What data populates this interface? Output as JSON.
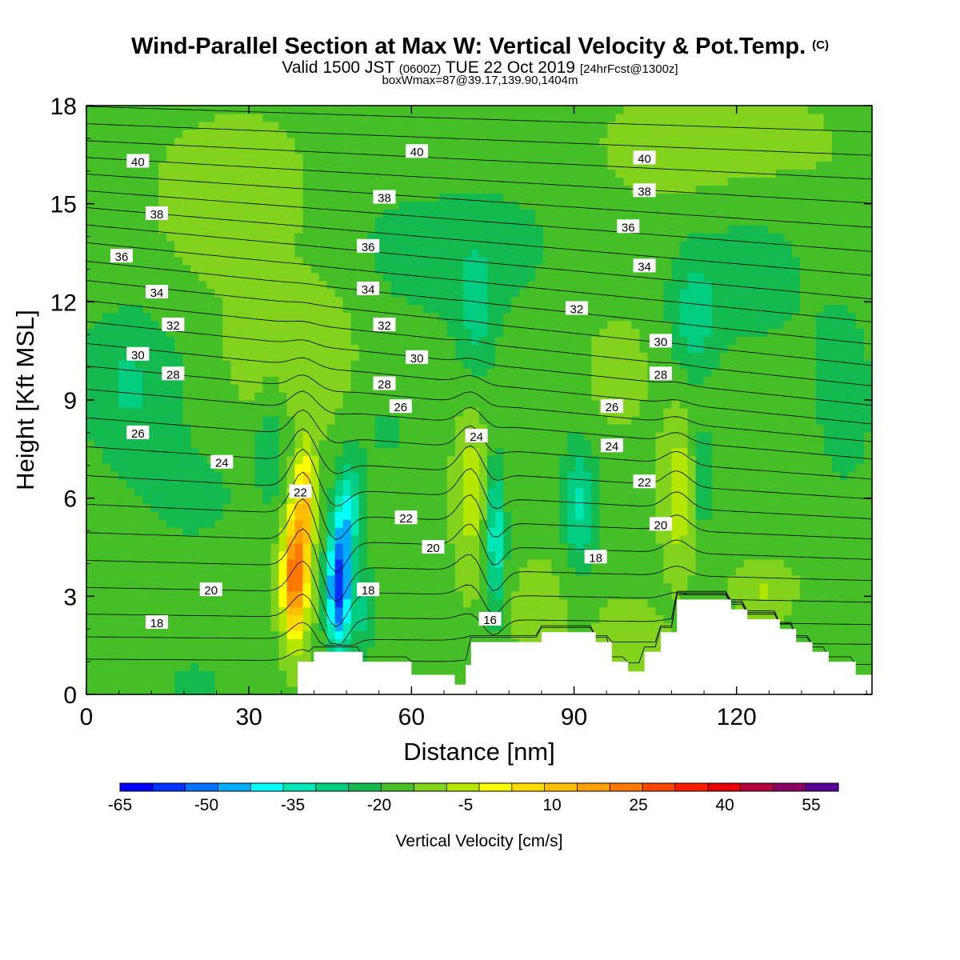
{
  "chart_data": {
    "type": "heatmap",
    "title": "Wind-Parallel Section at Max W: Vertical Velocity & Pot.Temp.",
    "copyright_mark": "(C)",
    "subtitle": {
      "valid_label": "Valid 1500 JST",
      "utc_time": "(0600Z)",
      "date_text": "TUE 22 Oct 2019",
      "forecast_info": "[24hrFcst@1300z]"
    },
    "box_info": "boxWmax=87@39.17,139.90,1404m",
    "xlabel": "Distance [nm]",
    "ylabel": "Height [Kft MSL]",
    "xlim": [
      0,
      145
    ],
    "ylim": [
      0,
      18
    ],
    "x_ticks": [
      0,
      30,
      60,
      90,
      120
    ],
    "y_ticks": [
      0,
      3,
      6,
      9,
      12,
      15,
      18
    ],
    "colorbar": {
      "label": "Vertical Velocity [cm/s]",
      "tick_labels": [
        "-65",
        "-50",
        "-35",
        "-20",
        "-5",
        "10",
        "25",
        "40",
        "55"
      ],
      "colors": [
        "#0000ff",
        "#0032ff",
        "#0072ff",
        "#00aaff",
        "#00ffff",
        "#00e6b4",
        "#00cd82",
        "#14b950",
        "#46be28",
        "#82d21e",
        "#b4e600",
        "#ffff00",
        "#ffdc00",
        "#ffbe00",
        "#ffa000",
        "#ff7800",
        "#ff4600",
        "#ff1e00",
        "#e60000",
        "#b4003c",
        "#8c0064",
        "#5a0096"
      ]
    },
    "terrain": [
      [
        0,
        0
      ],
      [
        39,
        0
      ],
      [
        39,
        1
      ],
      [
        42,
        1
      ],
      [
        42,
        1.3
      ],
      [
        51,
        1.3
      ],
      [
        51,
        1
      ],
      [
        60,
        1
      ],
      [
        60,
        0.6
      ],
      [
        68,
        0.6
      ],
      [
        68,
        0.3
      ],
      [
        70,
        0.3
      ],
      [
        70,
        0.9
      ],
      [
        71,
        0.9
      ],
      [
        71,
        1.6
      ],
      [
        84,
        1.6
      ],
      [
        84,
        1.9
      ],
      [
        94,
        1.9
      ],
      [
        94,
        1.6
      ],
      [
        97,
        1.6
      ],
      [
        97,
        1
      ],
      [
        100,
        1
      ],
      [
        100,
        0.7
      ],
      [
        103,
        0.7
      ],
      [
        103,
        1.3
      ],
      [
        106,
        1.3
      ],
      [
        106,
        1.9
      ],
      [
        109,
        1.9
      ],
      [
        109,
        2.9
      ],
      [
        119,
        2.9
      ],
      [
        119,
        2.6
      ],
      [
        122,
        2.6
      ],
      [
        122,
        2.3
      ],
      [
        128,
        2.3
      ],
      [
        128,
        2
      ],
      [
        131,
        2
      ],
      [
        131,
        1.6
      ],
      [
        134,
        1.6
      ],
      [
        134,
        1.3
      ],
      [
        137,
        1.3
      ],
      [
        137,
        1
      ],
      [
        142,
        1
      ],
      [
        142,
        0.6
      ],
      [
        145,
        0.6
      ],
      [
        145,
        0
      ]
    ],
    "vertical_velocity_cores": [
      {
        "x": 38.5,
        "z": 3.6,
        "value": 55,
        "sx": 2.3,
        "sz": 1.9
      },
      {
        "x": 40.5,
        "z": 6.0,
        "value": 32,
        "sx": 2.0,
        "sz": 1.6
      },
      {
        "x": 46.5,
        "z": 3.3,
        "value": -55,
        "sx": 2.1,
        "sz": 2.0
      },
      {
        "x": 48.5,
        "z": 5.6,
        "value": -25,
        "sx": 2.2,
        "sz": 1.6
      },
      {
        "x": 51,
        "z": 2.6,
        "value": -15,
        "sx": 2.5,
        "sz": 1.5
      },
      {
        "x": 71,
        "z": 6.2,
        "value": 14,
        "sx": 3.0,
        "sz": 2.5
      },
      {
        "x": 75.5,
        "z": 4.8,
        "value": -28,
        "sx": 1.8,
        "sz": 2.4
      },
      {
        "x": 91,
        "z": 5.8,
        "value": -22,
        "sx": 3.2,
        "sz": 2.0
      },
      {
        "x": 109.5,
        "z": 6.2,
        "value": 16,
        "sx": 3.0,
        "sz": 2.2
      },
      {
        "x": 113.5,
        "z": 6.5,
        "value": -14,
        "sx": 2.0,
        "sz": 1.8
      },
      {
        "x": 43,
        "z": 10.5,
        "value": 10,
        "sx": 7.0,
        "sz": 2.2
      },
      {
        "x": 30,
        "z": 11.0,
        "value": 8,
        "sx": 4.0,
        "sz": 1.8
      },
      {
        "x": 34,
        "z": 7.5,
        "value": -12,
        "sx": 2.5,
        "sz": 1.5
      },
      {
        "x": 8,
        "z": 9.5,
        "value": -14,
        "sx": 10.0,
        "sz": 2.5
      },
      {
        "x": 28,
        "z": 15.0,
        "value": 7,
        "sx": 14.0,
        "sz": 2.5
      },
      {
        "x": 68,
        "z": 14.0,
        "value": -10,
        "sx": 22.0,
        "sz": 3.0
      },
      {
        "x": 72,
        "z": 11.5,
        "value": -12,
        "sx": 3.5,
        "sz": 2.0
      },
      {
        "x": 112,
        "z": 11.5,
        "value": -14,
        "sx": 4.0,
        "sz": 1.8
      },
      {
        "x": 122,
        "z": 13.0,
        "value": -9,
        "sx": 14.0,
        "sz": 3.0
      },
      {
        "x": 116,
        "z": 16.5,
        "value": 7,
        "sx": 22.0,
        "sz": 2.0
      },
      {
        "x": 65,
        "z": 16.5,
        "value": 6,
        "sx": 15.0,
        "sz": 1.5
      },
      {
        "x": 98,
        "z": 10.0,
        "value": 6,
        "sx": 6.0,
        "sz": 1.8
      },
      {
        "x": 20,
        "z": 0.4,
        "value": -8,
        "sx": 6.0,
        "sz": 0.8
      },
      {
        "x": 140,
        "z": 9.0,
        "value": -10,
        "sx": 6.0,
        "sz": 3.0
      },
      {
        "x": 20,
        "z": 6.0,
        "value": -7,
        "sx": 12.0,
        "sz": 2.0
      },
      {
        "x": 55,
        "z": 8.0,
        "value": -6,
        "sx": 8.0,
        "sz": 2.0
      },
      {
        "x": 100,
        "z": 1.7,
        "value": 9,
        "sx": 6.0,
        "sz": 1.0
      },
      {
        "x": 125,
        "z": 3.2,
        "value": 10,
        "sx": 5.0,
        "sz": 0.8
      },
      {
        "x": 84,
        "z": 2.6,
        "value": 7,
        "sx": 5.0,
        "sz": 1.5
      }
    ],
    "potential_temperature_contours": {
      "levels_start": 16,
      "levels_step": 1,
      "count": 26,
      "labels": [
        {
          "text": "40",
          "x": 9.5,
          "z": 16.3
        },
        {
          "text": "38",
          "x": 13,
          "z": 14.7
        },
        {
          "text": "36",
          "x": 6.5,
          "z": 13.4
        },
        {
          "text": "34",
          "x": 13,
          "z": 12.3
        },
        {
          "text": "32",
          "x": 16,
          "z": 11.3
        },
        {
          "text": "30",
          "x": 9.5,
          "z": 10.4
        },
        {
          "text": "28",
          "x": 16,
          "z": 9.8
        },
        {
          "text": "26",
          "x": 9.5,
          "z": 8.0
        },
        {
          "text": "24",
          "x": 25,
          "z": 7.1
        },
        {
          "text": "22",
          "x": 39.5,
          "z": 6.2
        },
        {
          "text": "20",
          "x": 23,
          "z": 3.2
        },
        {
          "text": "18",
          "x": 13,
          "z": 2.2
        },
        {
          "text": "40",
          "x": 61,
          "z": 16.6
        },
        {
          "text": "38",
          "x": 55,
          "z": 15.2
        },
        {
          "text": "36",
          "x": 52,
          "z": 13.7
        },
        {
          "text": "34",
          "x": 52,
          "z": 12.4
        },
        {
          "text": "32",
          "x": 55,
          "z": 11.3
        },
        {
          "text": "30",
          "x": 61,
          "z": 10.3
        },
        {
          "text": "28",
          "x": 55,
          "z": 9.5
        },
        {
          "text": "26",
          "x": 58,
          "z": 8.8
        },
        {
          "text": "24",
          "x": 72,
          "z": 7.9
        },
        {
          "text": "22",
          "x": 59,
          "z": 5.4
        },
        {
          "text": "20",
          "x": 64,
          "z": 4.5
        },
        {
          "text": "18",
          "x": 52,
          "z": 3.2
        },
        {
          "text": "16",
          "x": 74.5,
          "z": 2.3
        },
        {
          "text": "40",
          "x": 103,
          "z": 16.4
        },
        {
          "text": "38",
          "x": 103,
          "z": 15.4
        },
        {
          "text": "36",
          "x": 100,
          "z": 14.3
        },
        {
          "text": "34",
          "x": 103,
          "z": 13.1
        },
        {
          "text": "32",
          "x": 90.5,
          "z": 11.8
        },
        {
          "text": "30",
          "x": 106,
          "z": 10.8
        },
        {
          "text": "28",
          "x": 106,
          "z": 9.8
        },
        {
          "text": "26",
          "x": 97,
          "z": 8.8
        },
        {
          "text": "24",
          "x": 97,
          "z": 7.6
        },
        {
          "text": "22",
          "x": 103,
          "z": 6.5
        },
        {
          "text": "20",
          "x": 106,
          "z": 5.2
        },
        {
          "text": "18",
          "x": 94,
          "z": 4.2
        }
      ]
    }
  }
}
